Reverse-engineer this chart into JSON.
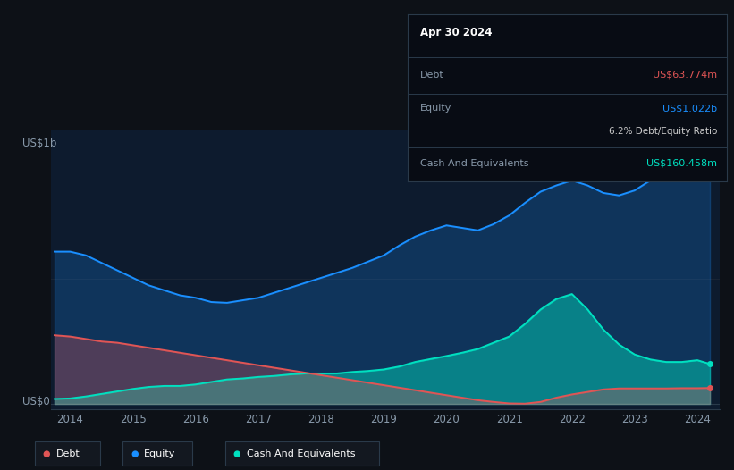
{
  "background_color": "#0d1117",
  "chart_bg_color": "#0d1b2e",
  "tooltip_bg": "#080c14",
  "tooltip_border": "#2a3a4a",
  "grid_color": "#1a2535",
  "x_ticks": [
    "2014",
    "2015",
    "2016",
    "2017",
    "2018",
    "2019",
    "2020",
    "2021",
    "2022",
    "2023",
    "2024"
  ],
  "tooltip_date": "Apr 30 2024",
  "tooltip_debt_label": "Debt",
  "tooltip_debt_value": "US$63.774m",
  "tooltip_equity_label": "Equity",
  "tooltip_equity_value": "US$1.022b",
  "tooltip_ratio_bold": "6.2%",
  "tooltip_ratio_normal": " Debt/Equity Ratio",
  "tooltip_cash_label": "Cash And Equivalents",
  "tooltip_cash_value": "US$160.458m",
  "equity_color": "#1a8fff",
  "debt_color": "#e05555",
  "cash_color": "#00e0c0",
  "y1_label": "US$1b",
  "y0_label": "US$0",
  "legend_items": [
    {
      "label": "Debt",
      "color": "#e05555"
    },
    {
      "label": "Equity",
      "color": "#1a8fff"
    },
    {
      "label": "Cash And Equivalents",
      "color": "#00e0c0"
    }
  ],
  "years_num": [
    2013.75,
    2014.0,
    2014.25,
    2014.5,
    2014.75,
    2015.0,
    2015.25,
    2015.5,
    2015.75,
    2016.0,
    2016.25,
    2016.5,
    2016.75,
    2017.0,
    2017.25,
    2017.5,
    2017.75,
    2018.0,
    2018.25,
    2018.5,
    2018.75,
    2019.0,
    2019.25,
    2019.5,
    2019.75,
    2020.0,
    2020.25,
    2020.5,
    2020.75,
    2021.0,
    2021.25,
    2021.5,
    2021.75,
    2022.0,
    2022.25,
    2022.5,
    2022.75,
    2023.0,
    2023.25,
    2023.5,
    2023.75,
    2024.0,
    2024.2
  ],
  "equity": [
    0.61,
    0.61,
    0.595,
    0.565,
    0.535,
    0.505,
    0.475,
    0.455,
    0.435,
    0.425,
    0.408,
    0.405,
    0.415,
    0.425,
    0.445,
    0.465,
    0.485,
    0.505,
    0.525,
    0.545,
    0.57,
    0.595,
    0.635,
    0.67,
    0.695,
    0.715,
    0.705,
    0.695,
    0.72,
    0.755,
    0.805,
    0.85,
    0.875,
    0.895,
    0.875,
    0.845,
    0.835,
    0.855,
    0.895,
    0.93,
    0.96,
    0.98,
    1.022
  ],
  "debt": [
    0.275,
    0.27,
    0.26,
    0.25,
    0.245,
    0.235,
    0.225,
    0.215,
    0.205,
    0.195,
    0.185,
    0.175,
    0.165,
    0.155,
    0.145,
    0.135,
    0.125,
    0.115,
    0.105,
    0.095,
    0.085,
    0.075,
    0.065,
    0.055,
    0.045,
    0.035,
    0.025,
    0.015,
    0.008,
    0.002,
    0.001,
    0.008,
    0.025,
    0.038,
    0.048,
    0.058,
    0.062,
    0.062,
    0.062,
    0.062,
    0.063,
    0.063,
    0.0638
  ],
  "cash": [
    0.02,
    0.022,
    0.03,
    0.04,
    0.05,
    0.06,
    0.068,
    0.072,
    0.072,
    0.078,
    0.088,
    0.098,
    0.102,
    0.108,
    0.112,
    0.118,
    0.122,
    0.122,
    0.122,
    0.128,
    0.132,
    0.138,
    0.15,
    0.168,
    0.18,
    0.192,
    0.205,
    0.22,
    0.245,
    0.27,
    0.32,
    0.378,
    0.42,
    0.44,
    0.378,
    0.298,
    0.238,
    0.198,
    0.178,
    0.168,
    0.168,
    0.175,
    0.16
  ]
}
